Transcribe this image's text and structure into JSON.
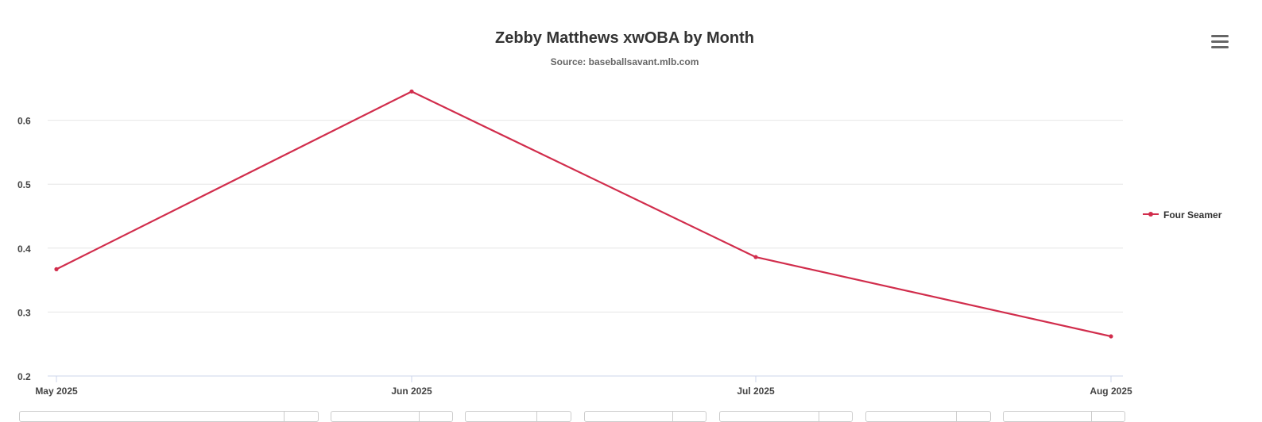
{
  "chart_data": {
    "type": "line",
    "title": "Zebby Matthews xwOBA by Month",
    "subtitle": "Source: baseballsavant.mlb.com",
    "x": [
      "May 2025",
      "Jun 2025",
      "Jul 2025",
      "Aug 2025"
    ],
    "series": [
      {
        "name": "Four Seamer",
        "values": [
          0.367,
          0.645,
          0.386,
          0.262
        ],
        "color": "#d12d4c"
      }
    ],
    "ylim": [
      0.2,
      0.65
    ],
    "y_ticks": [
      0.2,
      0.3,
      0.4,
      0.5,
      0.6
    ],
    "y_tick_labels": [
      "0.2",
      "0.3",
      "0.4",
      "0.5",
      "0.6"
    ],
    "grid": true,
    "legend_position": "right"
  },
  "menu": {
    "icon": "hamburger-menu-icon"
  }
}
